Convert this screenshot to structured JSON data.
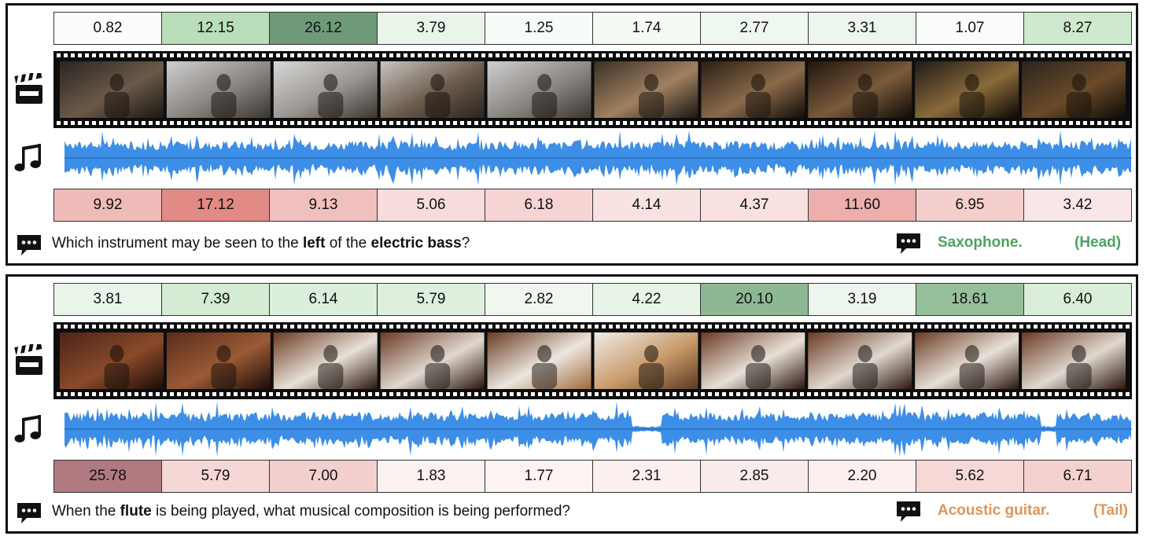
{
  "panels": [
    {
      "video_scores": [
        "0.82",
        "12.15",
        "26.12",
        "3.79",
        "1.25",
        "1.74",
        "2.77",
        "3.31",
        "1.07",
        "8.27"
      ],
      "audio_scores": [
        "9.92",
        "17.12",
        "9.13",
        "5.06",
        "6.18",
        "4.14",
        "4.37",
        "11.60",
        "6.95",
        "3.42"
      ],
      "question": {
        "part1": "Which instrument may be seen to the ",
        "bold1": "left",
        "part2": " of the ",
        "bold2": "electric bass",
        "part3": "?"
      },
      "answer": "Saxophone.",
      "tag": "(Head)",
      "answer_color": "#4aa35f"
    },
    {
      "video_scores": [
        "3.81",
        "7.39",
        "6.14",
        "5.79",
        "2.82",
        "4.22",
        "20.10",
        "3.19",
        "18.61",
        "6.40"
      ],
      "audio_scores": [
        "25.78",
        "5.79",
        "7.00",
        "1.83",
        "1.77",
        "2.31",
        "2.85",
        "2.20",
        "5.62",
        "6.71"
      ],
      "question": {
        "part1": "When the ",
        "bold1": "flute",
        "part2": " is being played, what musical composition is being performed?",
        "bold2": "",
        "part3": ""
      },
      "answer": "Acoustic guitar.",
      "tag": "(Tail)",
      "answer_color": "#e0955a"
    }
  ],
  "icons": {
    "video": "clapperboard-icon",
    "audio": "music-note-icon",
    "question": "speech-bubble-icon",
    "answer": "speech-bubble-icon"
  },
  "colors": {
    "video_heat_max": "#6e9a78",
    "audio_heat_max": "#b07a80",
    "waveform": "#3d8ee6"
  }
}
